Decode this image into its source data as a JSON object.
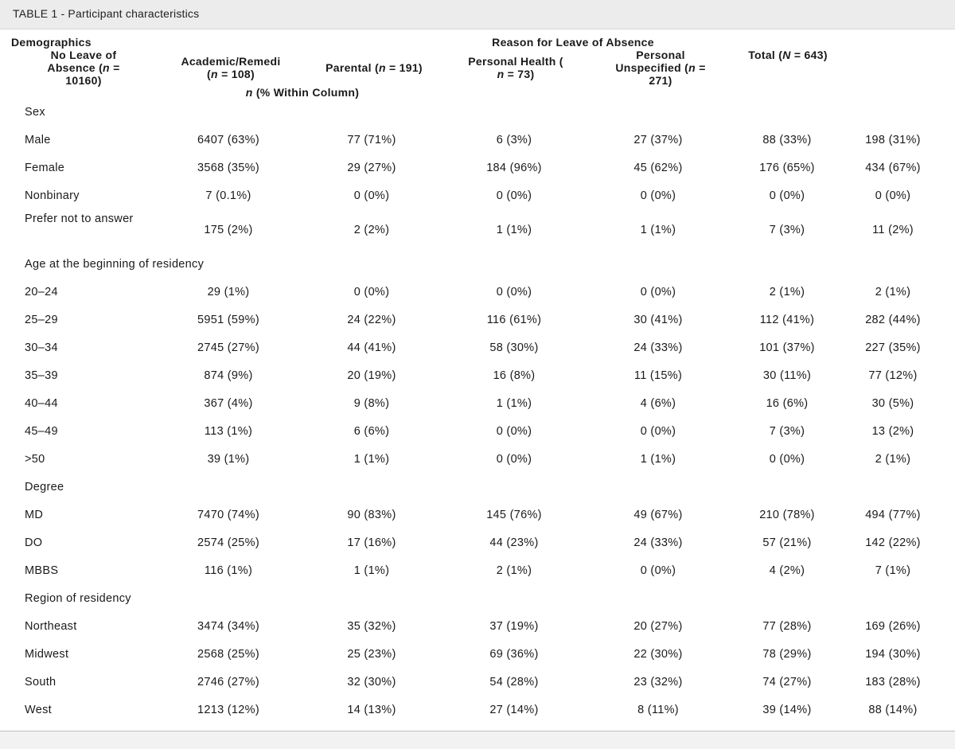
{
  "caption": "TABLE 1 - Participant characteristics",
  "headers": {
    "demographics": "Demographics",
    "reason_group": "Reason for Leave of Absence",
    "no_leave": "No Leave of Absence (n = 10160)",
    "academic": "Academic/Remedi (n = 108)",
    "parental": "Parental (n = 191)",
    "personal_health": "Personal Health ( n = 73)",
    "personal_unspecified": "Personal Unspecified (n = 271)",
    "total": "Total (N = 643)",
    "within_column": "n (% Within Column)"
  },
  "sections": [
    {
      "title": "Sex",
      "rows": [
        {
          "label": "Male",
          "values": [
            "6407 (63%)",
            "77 (71%)",
            "6 (3%)",
            "27 (37%)",
            "88 (33%)",
            "198 (31%)"
          ]
        },
        {
          "label": "Female",
          "values": [
            "3568 (35%)",
            "29 (27%)",
            "184 (96%)",
            "45 (62%)",
            "176 (65%)",
            "434 (67%)"
          ]
        },
        {
          "label": "Nonbinary",
          "values": [
            "7 (0.1%)",
            "0 (0%)",
            "0 (0%)",
            "0 (0%)",
            "0 (0%)",
            "0 (0%)"
          ]
        },
        {
          "label": "Prefer not to answer",
          "values": [
            "175 (2%)",
            "2 (2%)",
            "1 (1%)",
            "1 (1%)",
            "7 (3%)",
            "11 (2%)"
          ]
        }
      ]
    },
    {
      "title": "Age at the beginning of residency",
      "rows": [
        {
          "label": "20–24",
          "values": [
            "29 (1%)",
            "0 (0%)",
            "0 (0%)",
            "0 (0%)",
            "2 (1%)",
            "2 (1%)"
          ]
        },
        {
          "label": "25–29",
          "values": [
            "5951 (59%)",
            "24 (22%)",
            "116 (61%)",
            "30 (41%)",
            "112 (41%)",
            "282 (44%)"
          ]
        },
        {
          "label": "30–34",
          "values": [
            "2745 (27%)",
            "44 (41%)",
            "58 (30%)",
            "24 (33%)",
            "101 (37%)",
            "227 (35%)"
          ]
        },
        {
          "label": "35–39",
          "values": [
            "874 (9%)",
            "20 (19%)",
            "16 (8%)",
            "11 (15%)",
            "30 (11%)",
            "77 (12%)"
          ]
        },
        {
          "label": "40–44",
          "values": [
            "367 (4%)",
            "9 (8%)",
            "1 (1%)",
            "4 (6%)",
            "16 (6%)",
            "30 (5%)"
          ]
        },
        {
          "label": "45–49",
          "values": [
            "113 (1%)",
            "6 (6%)",
            "0 (0%)",
            "0 (0%)",
            "7 (3%)",
            "13 (2%)"
          ]
        },
        {
          "label": ">50",
          "values": [
            "39 (1%)",
            "1 (1%)",
            "0 (0%)",
            "1 (1%)",
            "0 (0%)",
            "2 (1%)"
          ]
        }
      ]
    },
    {
      "title": "Degree",
      "rows": [
        {
          "label": "MD",
          "values": [
            "7470 (74%)",
            "90 (83%)",
            "145 (76%)",
            "49 (67%)",
            "210 (78%)",
            "494 (77%)"
          ]
        },
        {
          "label": "DO",
          "values": [
            "2574 (25%)",
            "17 (16%)",
            "44 (23%)",
            "24 (33%)",
            "57 (21%)",
            "142 (22%)"
          ]
        },
        {
          "label": "MBBS",
          "values": [
            "116 (1%)",
            "1 (1%)",
            "2 (1%)",
            "0 (0%)",
            "4 (2%)",
            "7 (1%)"
          ]
        }
      ]
    },
    {
      "title": "Region of residency",
      "rows": [
        {
          "label": "Northeast",
          "values": [
            "3474 (34%)",
            "35 (32%)",
            "37 (19%)",
            "20 (27%)",
            "77 (28%)",
            "169 (26%)"
          ]
        },
        {
          "label": "Midwest",
          "values": [
            "2568 (25%)",
            "25 (23%)",
            "69 (36%)",
            "22 (30%)",
            "78 (29%)",
            "194 (30%)"
          ]
        },
        {
          "label": "South",
          "values": [
            "2746 (27%)",
            "32 (30%)",
            "54 (28%)",
            "23 (32%)",
            "74 (27%)",
            "183 (28%)"
          ]
        },
        {
          "label": "West",
          "values": [
            "1213 (12%)",
            "14 (13%)",
            "27 (14%)",
            "8 (11%)",
            "39 (14%)",
            "88 (14%)"
          ]
        }
      ]
    }
  ]
}
